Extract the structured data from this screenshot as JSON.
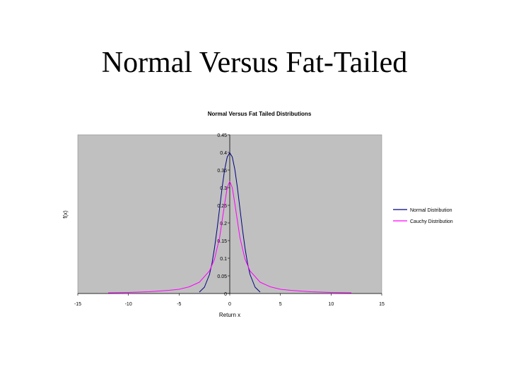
{
  "slide": {
    "title": "Normal Versus Fat-Tailed"
  },
  "colors": {
    "plot_background": "#c0c0c0",
    "normal_series": "#000080",
    "cauchy_series": "#ff00ff"
  },
  "chart_data": {
    "type": "line",
    "title": "Normal Versus Fat Tailed Distributions",
    "xlabel": "Return x",
    "ylabel": "f(x)",
    "xlim": [
      -15,
      15
    ],
    "ylim": [
      0,
      0.45
    ],
    "x_ticks": [
      -15,
      -10,
      -5,
      0,
      5,
      10,
      15
    ],
    "x_tick_labels": [
      "-15",
      "-10",
      "-5",
      "0",
      "5",
      "10",
      "15"
    ],
    "y_ticks": [
      0,
      0.05,
      0.1,
      0.15,
      0.2,
      0.25,
      0.3,
      0.35,
      0.4,
      0.45
    ],
    "y_tick_labels": [
      "0",
      "0.05",
      "0.1",
      "0.15",
      "0.2",
      "0.25",
      "0.3",
      "0.35",
      "0.4",
      "0.45"
    ],
    "grid": false,
    "legend_position": "right",
    "series": [
      {
        "name": "Normal Distribution",
        "x": [
          -3,
          -2.5,
          -2,
          -1.75,
          -1.5,
          -1.25,
          -1,
          -0.75,
          -0.5,
          -0.25,
          0,
          0.25,
          0.5,
          0.75,
          1,
          1.25,
          1.5,
          1.75,
          2,
          2.5,
          3
        ],
        "y": [
          0.004,
          0.018,
          0.054,
          0.086,
          0.13,
          0.183,
          0.242,
          0.301,
          0.352,
          0.387,
          0.399,
          0.387,
          0.352,
          0.301,
          0.242,
          0.183,
          0.13,
          0.086,
          0.054,
          0.018,
          0.004
        ]
      },
      {
        "name": "Cauchy Distribution",
        "x": [
          -12,
          -10,
          -8,
          -6,
          -5,
          -4,
          -3,
          -2,
          -1.5,
          -1,
          -0.5,
          -0.25,
          0,
          0.25,
          0.5,
          1,
          1.5,
          2,
          3,
          4,
          5,
          6,
          8,
          10,
          12
        ],
        "y": [
          0.002,
          0.003,
          0.005,
          0.009,
          0.012,
          0.019,
          0.032,
          0.064,
          0.098,
          0.159,
          0.255,
          0.3,
          0.318,
          0.3,
          0.255,
          0.159,
          0.098,
          0.064,
          0.032,
          0.019,
          0.012,
          0.009,
          0.005,
          0.003,
          0.002
        ]
      }
    ]
  }
}
